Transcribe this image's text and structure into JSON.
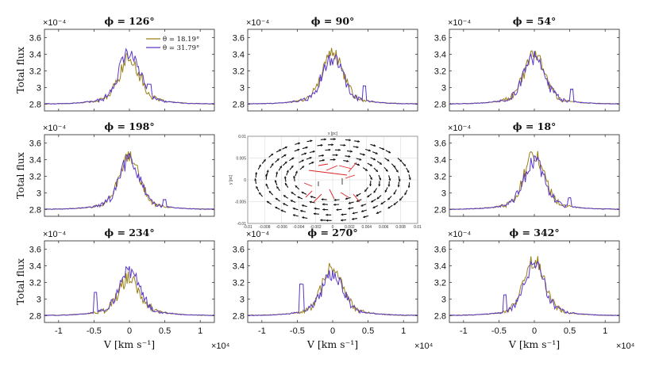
{
  "chart_data": {
    "type": "line",
    "layout": "3x3 grid",
    "ylabel": "Total flux",
    "xlabel": "V [km s⁻¹]",
    "y_exponent": "×10⁻⁴",
    "x_exponent": "×10⁴",
    "xlim": [
      -1.2,
      1.2
    ],
    "ylim": [
      2.72,
      3.7
    ],
    "xticks": [
      -1,
      -0.5,
      0,
      0.5,
      1
    ],
    "xtick_labels": [
      "-1",
      "-0.5",
      "0",
      "0.5",
      "1"
    ],
    "yticks": [
      2.8,
      3,
      3.2,
      3.4,
      3.6
    ],
    "ytick_labels": [
      "2.8",
      "3",
      "3.2",
      "3.4",
      "3.6"
    ],
    "colors": {
      "theta1": "#9a7f16",
      "theta2": "#5a38c8"
    },
    "legend": [
      "θ = 18.19°",
      "θ = 31.79°"
    ],
    "panels": [
      {
        "title": "ϕ = 126°",
        "peak1": 3.35,
        "peak2": 3.44,
        "bump": [
          0.28,
          3.04
        ]
      },
      {
        "title": "ϕ = 90°",
        "peak1": 3.41,
        "peak2": 3.36,
        "bump": [
          0.45,
          3.02
        ]
      },
      {
        "title": "ϕ = 54°",
        "peak1": 3.4,
        "peak2": 3.36,
        "bump": [
          0.53,
          2.98
        ]
      },
      {
        "title": "ϕ = 198°",
        "peak1": 3.43,
        "peak2": 3.4,
        "bump": [
          0.5,
          2.92
        ]
      },
      {
        "title": "ϕ = 18°",
        "peak1": 3.46,
        "peak2": 3.38,
        "bump": [
          0.5,
          2.94
        ]
      },
      {
        "title": "ϕ = 234°",
        "peak1": 3.26,
        "peak2": 3.34,
        "bump": [
          -0.48,
          3.08
        ]
      },
      {
        "title": "ϕ = 270°",
        "peak1": 3.39,
        "peak2": 3.3,
        "bump": [
          -0.44,
          3.18
        ]
      },
      {
        "title": "ϕ = 342°",
        "peak1": 3.47,
        "peak2": 3.4,
        "bump": [
          -0.42,
          3.05
        ]
      }
    ],
    "inset": {
      "type": "vector field",
      "title": "x [pc]",
      "ylabel": "y [pc]",
      "xtick_labels": [
        "-0.01",
        "-0.008",
        "-0.006",
        "-0.004",
        "-0.002",
        "0",
        "0.002",
        "0.004",
        "0.006",
        "0.008",
        "0.01"
      ],
      "ytick_labels": [
        "0.01",
        "0.005",
        "0",
        "-0.005",
        "-0.01"
      ],
      "xlim": [
        -0.01,
        0.01
      ],
      "ylim": [
        -0.01,
        0.01
      ]
    }
  }
}
